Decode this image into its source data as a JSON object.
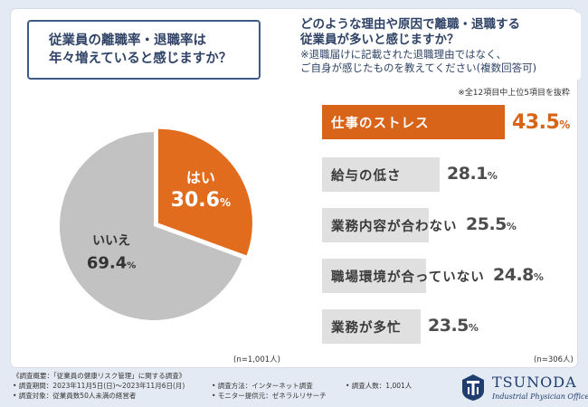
{
  "question_left": {
    "line1": "従業員の離職率・退職率は",
    "line2": "年々増えていると感じますか？"
  },
  "question_right": {
    "line1": "どのような理由や原因で離職・退職する",
    "line2": "従業員が多いと感じますか？",
    "note1": "※退職届けに記載された退職理由ではなく、",
    "note2": "ご自身が感じたものを教えてください(複数回答可)",
    "subnote": "※全12項目中上位5項目を抜粋"
  },
  "pie": {
    "n_label": "(n=1,001人)",
    "colors": {
      "yes": "#e16c1e",
      "no": "#c2c2c2"
    }
  },
  "bars": {
    "n_label": "(n=306人)",
    "colors": {
      "top": "#d8641a",
      "rest": "#e0e0e0"
    }
  },
  "chart_data": [
    {
      "type": "pie",
      "title": "従業員の離職率・退職率は年々増えていると感じますか？",
      "slices": [
        {
          "label": "はい",
          "value": 30.6,
          "value_text": "30.6",
          "unit": "%",
          "color": "#e16c1e"
        },
        {
          "label": "いいえ",
          "value": 69.4,
          "value_text": "69.4",
          "unit": "%",
          "color": "#c2c2c2"
        }
      ],
      "n": "(n=1,001人)"
    },
    {
      "type": "bar",
      "orientation": "horizontal",
      "title": "どのような理由や原因で離職・退職する従業員が多いと感じますか？",
      "categories": [
        "仕事のストレス",
        "給与の低さ",
        "業務内容が合わない",
        "職場環境が合っていない",
        "業務が多忙"
      ],
      "values": [
        43.5,
        28.1,
        25.5,
        24.8,
        23.5
      ],
      "value_texts": [
        "43.5",
        "28.1",
        "25.5",
        "24.8",
        "23.5"
      ],
      "unit": "%",
      "n": "(n=306人)"
    }
  ],
  "footer": {
    "overview": "《調査概要：「従業員の健康リスク管理」に関する調査》",
    "period": "• 調査期間：2023年11月5日(日)〜2023年11月6日(月)",
    "target": "• 調査対象：従業員数50人未満の経営者",
    "method": "• 調査方法：インターネット調査",
    "provider": "• モニター提供元：ゼネラルリサーチ",
    "count": "• 調査人数：1,001人"
  },
  "logo": {
    "name": "TSUNODA",
    "subtitle": "Industrial Physician Office"
  }
}
